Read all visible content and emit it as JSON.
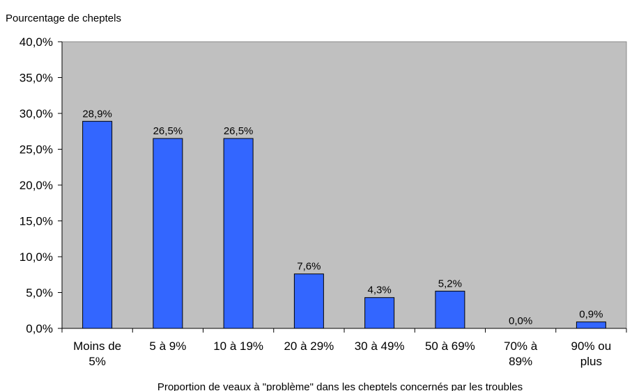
{
  "chart_data": {
    "type": "bar",
    "ylabel": "Pourcentage de cheptels",
    "xlabel": "Proportion de veaux à \"problème\" dans les cheptels concernés par les troubles",
    "categories": [
      [
        "Moins de",
        "5%"
      ],
      [
        "5 à 9%"
      ],
      [
        "10 à 19%"
      ],
      [
        "20 à 29%"
      ],
      [
        "30 à 49%"
      ],
      [
        "50 à 69%"
      ],
      [
        "70% à",
        "89%"
      ],
      [
        "90% ou",
        "plus"
      ]
    ],
    "values": [
      28.9,
      26.5,
      26.5,
      7.6,
      4.3,
      5.2,
      0.0,
      0.9
    ],
    "data_labels": [
      "28,9%",
      "26,5%",
      "26,5%",
      "7,6%",
      "4,3%",
      "5,2%",
      "0,0%",
      "0,9%"
    ],
    "ylim": [
      0,
      40
    ],
    "yticks": [
      0,
      5,
      10,
      15,
      20,
      25,
      30,
      35,
      40
    ],
    "ytick_labels": [
      "0,0%",
      "5,0%",
      "10,0%",
      "15,0%",
      "20,0%",
      "25,0%",
      "30,0%",
      "35,0%",
      "40,0%"
    ],
    "grid": false,
    "colors": {
      "bar_fill": "#3366FF",
      "bar_stroke": "#000000",
      "plot_background": "#C0C0C0"
    }
  }
}
